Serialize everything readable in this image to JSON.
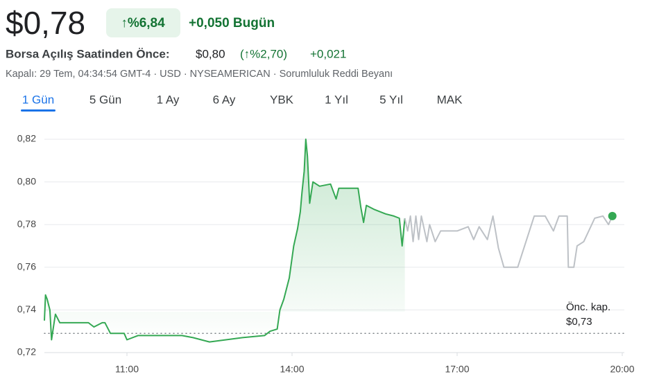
{
  "header": {
    "price": "$0,78",
    "change_pct": "↑%6,84",
    "change_abs": "+0,050 Bugün",
    "premarket_label": "Borsa Açılış Saatinden Önce:",
    "premarket_price": "$0,80",
    "premarket_pct": "(↑%2,70)",
    "premarket_abs": "+0,021",
    "meta": "Kapalı: 29 Tem, 04:34:54 GMT-4 · USD · NYSEAMERICAN · Sorumluluk Reddi Beyanı"
  },
  "tabs": {
    "items": [
      "1 Gün",
      "5 Gün",
      "1 Ay",
      "6 Ay",
      "YBK",
      "1 Yıl",
      "5 Yıl",
      "MAK"
    ],
    "selected": 0
  },
  "chart_data": {
    "type": "line",
    "xlim": [
      9.5,
      20.0
    ],
    "xticks": [
      {
        "value": 11,
        "label": "11:00"
      },
      {
        "value": 14,
        "label": "14:00"
      },
      {
        "value": 17,
        "label": "17:00"
      },
      {
        "value": 20,
        "label": "20:00"
      }
    ],
    "ylim": [
      0.72,
      0.825
    ],
    "yticks": [
      {
        "value": 0.72,
        "label": "0,72"
      },
      {
        "value": 0.74,
        "label": "0,74"
      },
      {
        "value": 0.76,
        "label": "0,76"
      },
      {
        "value": 0.78,
        "label": "0,78"
      },
      {
        "value": 0.8,
        "label": "0,80"
      },
      {
        "value": 0.82,
        "label": "0,82"
      }
    ],
    "grid": true,
    "end_marker_color": "#34a853",
    "previous_close": {
      "label": "Önc. kap.",
      "value": 0.729,
      "value_label": "$0,73"
    },
    "series": [
      {
        "color": "#34a853",
        "area": true,
        "x": [
          9.5,
          9.52,
          9.55,
          9.6,
          9.63,
          9.67,
          9.7,
          9.78,
          10.3,
          10.4,
          10.55,
          10.6,
          10.7,
          10.95,
          11.0,
          11.2,
          12.0,
          12.2,
          12.5,
          12.8,
          13.1,
          13.5,
          13.6,
          13.73,
          13.78,
          13.85,
          13.95,
          14.03,
          14.1,
          14.15,
          14.18,
          14.22,
          14.25,
          14.28,
          14.32,
          14.38,
          14.5,
          14.7,
          14.8,
          14.85,
          15.2,
          15.25,
          15.3,
          15.35,
          15.5,
          15.7,
          15.85,
          15.95,
          16.0,
          16.05
        ],
        "values": [
          0.735,
          0.747,
          0.745,
          0.74,
          0.726,
          0.733,
          0.738,
          0.734,
          0.734,
          0.732,
          0.734,
          0.734,
          0.729,
          0.729,
          0.726,
          0.728,
          0.728,
          0.727,
          0.725,
          0.726,
          0.727,
          0.728,
          0.73,
          0.731,
          0.74,
          0.745,
          0.755,
          0.77,
          0.778,
          0.786,
          0.795,
          0.805,
          0.82,
          0.812,
          0.79,
          0.8,
          0.798,
          0.799,
          0.792,
          0.797,
          0.797,
          0.788,
          0.781,
          0.789,
          0.787,
          0.785,
          0.784,
          0.783,
          0.77,
          0.783
        ]
      },
      {
        "color": "#bdc1c6",
        "x": [
          16.05,
          16.1,
          16.15,
          16.2,
          16.25,
          16.3,
          16.35,
          16.45,
          16.5,
          16.6,
          16.7,
          17.0,
          17.2,
          17.3,
          17.4,
          17.55,
          17.65,
          17.75,
          17.85,
          18.1,
          18.4,
          18.6,
          18.75,
          18.85,
          19.0,
          19.02,
          19.12,
          19.18,
          19.3,
          19.5,
          19.65,
          19.75,
          19.82
        ],
        "values": [
          0.783,
          0.777,
          0.784,
          0.772,
          0.784,
          0.773,
          0.784,
          0.772,
          0.78,
          0.772,
          0.777,
          0.777,
          0.779,
          0.773,
          0.779,
          0.773,
          0.784,
          0.769,
          0.76,
          0.76,
          0.784,
          0.784,
          0.777,
          0.784,
          0.784,
          0.76,
          0.76,
          0.77,
          0.772,
          0.783,
          0.784,
          0.78,
          0.784
        ]
      }
    ]
  }
}
